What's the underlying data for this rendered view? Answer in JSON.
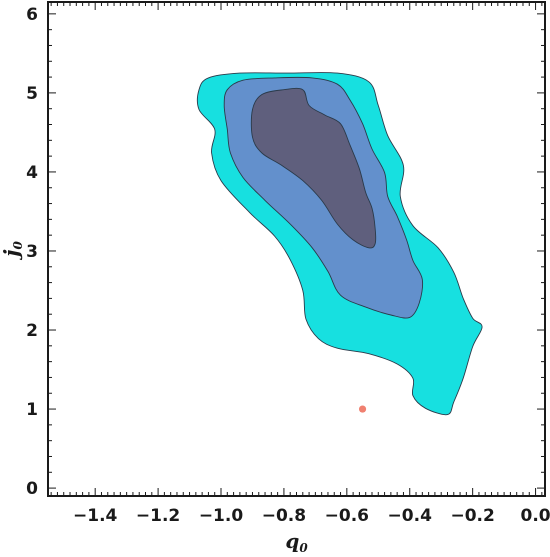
{
  "chart_data": {
    "type": "contour",
    "xlabel": "q",
    "xlabel_sub": "0",
    "ylabel": "j",
    "ylabel_sub": "0",
    "xlim": [
      -1.55,
      0.03
    ],
    "ylim": [
      -0.1,
      6.15
    ],
    "x_ticks": [
      -1.4,
      -1.2,
      -1.0,
      -0.8,
      -0.6,
      -0.4,
      -0.2,
      0.0
    ],
    "x_tick_labels": [
      "−1.4",
      "−1.2",
      "−1.0",
      "−0.8",
      "−0.6",
      "−0.4",
      "−0.2",
      "0.0"
    ],
    "y_ticks": [
      0,
      1,
      2,
      3,
      4,
      5,
      6
    ],
    "y_tick_labels": [
      "0",
      "1",
      "2",
      "3",
      "4",
      "5",
      "6"
    ],
    "grid": false,
    "contours": [
      {
        "level": "outer",
        "color": "#17e0e0",
        "points": [
          [
            -1.07,
            5.04
          ],
          [
            -1.04,
            5.19
          ],
          [
            -0.94,
            5.25
          ],
          [
            -0.79,
            5.25
          ],
          [
            -0.63,
            5.25
          ],
          [
            -0.53,
            5.14
          ],
          [
            -0.5,
            4.84
          ],
          [
            -0.47,
            4.46
          ],
          [
            -0.42,
            4.08
          ],
          [
            -0.43,
            3.69
          ],
          [
            -0.39,
            3.32
          ],
          [
            -0.31,
            3.04
          ],
          [
            -0.26,
            2.73
          ],
          [
            -0.23,
            2.4
          ],
          [
            -0.2,
            2.15
          ],
          [
            -0.17,
            2.04
          ],
          [
            -0.2,
            1.79
          ],
          [
            -0.23,
            1.39
          ],
          [
            -0.26,
            1.09
          ],
          [
            -0.28,
            0.93
          ],
          [
            -0.35,
            1.01
          ],
          [
            -0.39,
            1.17
          ],
          [
            -0.39,
            1.39
          ],
          [
            -0.44,
            1.57
          ],
          [
            -0.53,
            1.7
          ],
          [
            -0.63,
            1.77
          ],
          [
            -0.69,
            1.89
          ],
          [
            -0.73,
            2.14
          ],
          [
            -0.74,
            2.5
          ],
          [
            -0.78,
            2.89
          ],
          [
            -0.83,
            3.19
          ],
          [
            -0.91,
            3.49
          ],
          [
            -1.0,
            3.89
          ],
          [
            -1.03,
            4.24
          ],
          [
            -1.02,
            4.54
          ],
          [
            -1.07,
            4.79
          ],
          [
            -1.07,
            5.04
          ]
        ]
      },
      {
        "level": "middle",
        "color": "#6390cc",
        "points": [
          [
            -0.99,
            4.84
          ],
          [
            -0.98,
            5.04
          ],
          [
            -0.93,
            5.16
          ],
          [
            -0.83,
            5.19
          ],
          [
            -0.71,
            5.19
          ],
          [
            -0.63,
            5.11
          ],
          [
            -0.59,
            4.91
          ],
          [
            -0.55,
            4.61
          ],
          [
            -0.52,
            4.29
          ],
          [
            -0.48,
            3.99
          ],
          [
            -0.47,
            3.69
          ],
          [
            -0.44,
            3.44
          ],
          [
            -0.41,
            3.14
          ],
          [
            -0.39,
            2.88
          ],
          [
            -0.36,
            2.64
          ],
          [
            -0.37,
            2.34
          ],
          [
            -0.4,
            2.16
          ],
          [
            -0.46,
            2.19
          ],
          [
            -0.54,
            2.29
          ],
          [
            -0.62,
            2.44
          ],
          [
            -0.66,
            2.74
          ],
          [
            -0.71,
            3.04
          ],
          [
            -0.78,
            3.34
          ],
          [
            -0.86,
            3.64
          ],
          [
            -0.93,
            3.93
          ],
          [
            -0.97,
            4.24
          ],
          [
            -0.98,
            4.54
          ],
          [
            -0.99,
            4.84
          ]
        ]
      },
      {
        "level": "inner",
        "color": "#5f5f7d",
        "points": [
          [
            -0.9,
            4.44
          ],
          [
            -0.9,
            4.79
          ],
          [
            -0.87,
            4.98
          ],
          [
            -0.8,
            5.04
          ],
          [
            -0.74,
            5.04
          ],
          [
            -0.72,
            4.84
          ],
          [
            -0.67,
            4.72
          ],
          [
            -0.62,
            4.61
          ],
          [
            -0.59,
            4.34
          ],
          [
            -0.56,
            4.04
          ],
          [
            -0.54,
            3.74
          ],
          [
            -0.52,
            3.54
          ],
          [
            -0.51,
            3.29
          ],
          [
            -0.51,
            3.09
          ],
          [
            -0.53,
            3.04
          ],
          [
            -0.58,
            3.14
          ],
          [
            -0.63,
            3.34
          ],
          [
            -0.68,
            3.64
          ],
          [
            -0.74,
            3.89
          ],
          [
            -0.81,
            4.09
          ],
          [
            -0.87,
            4.24
          ],
          [
            -0.9,
            4.44
          ]
        ]
      }
    ],
    "points": [
      {
        "x": -0.55,
        "y": 1.0,
        "color": "#f08070"
      }
    ]
  }
}
